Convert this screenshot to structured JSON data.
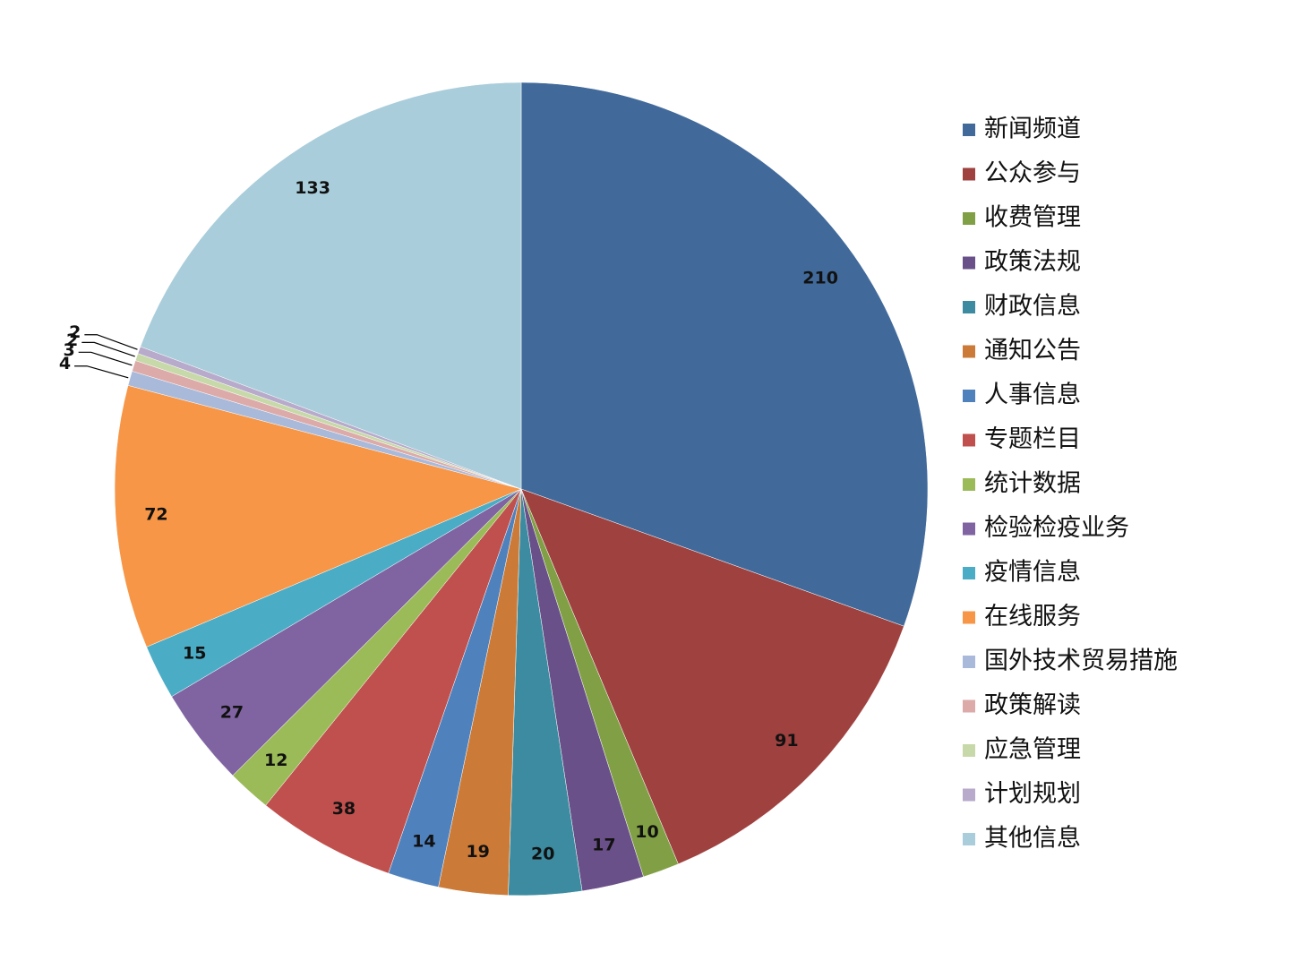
{
  "chart_data": {
    "type": "pie",
    "title": "",
    "legend_position": "right",
    "slices": [
      {
        "label": "新闻频道",
        "value": 210,
        "color": "#416A9B"
      },
      {
        "label": "公众参与",
        "value": 91,
        "color": "#9E413F"
      },
      {
        "label": "收费管理",
        "value": 10,
        "color": "#81A045"
      },
      {
        "label": "政策法规",
        "value": 17,
        "color": "#6A5088"
      },
      {
        "label": "财政信息",
        "value": 20,
        "color": "#3C8BA0"
      },
      {
        "label": "通知公告",
        "value": 19,
        "color": "#CB7B37"
      },
      {
        "label": "人事信息",
        "value": 14,
        "color": "#4F81BD"
      },
      {
        "label": "专题栏目",
        "value": 38,
        "color": "#C0504D"
      },
      {
        "label": "统计数据",
        "value": 12,
        "color": "#9BBB59"
      },
      {
        "label": "检验检疫业务",
        "value": 27,
        "color": "#8064A2"
      },
      {
        "label": "疫情信息",
        "value": 15,
        "color": "#4BACC6"
      },
      {
        "label": "在线服务",
        "value": 72,
        "color": "#F79646"
      },
      {
        "label": "国外技术贸易措施",
        "value": 4,
        "color": "#A9B9D9"
      },
      {
        "label": "政策解读",
        "value": 3,
        "color": "#DCAAA9"
      },
      {
        "label": "应急管理",
        "value": 2,
        "color": "#C7D9A8"
      },
      {
        "label": "计划规划",
        "value": 2,
        "color": "#B7AACB"
      },
      {
        "label": "其他信息",
        "value": 133,
        "color": "#A9CDDA"
      }
    ]
  }
}
